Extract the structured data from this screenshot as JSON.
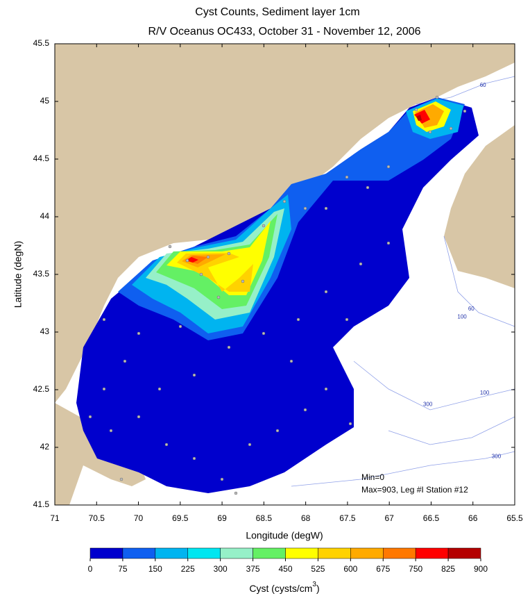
{
  "chart_data": {
    "type": "contour-map",
    "title": "Cyst Counts, Sediment layer 1cm",
    "subtitle": "R/V Oceanus OC433, October 31 - November 12, 2006",
    "x_label": "Longitude (degW)",
    "y_label": "Latitude (degN)",
    "xlim": [
      71,
      65.5
    ],
    "xticks": [
      71,
      70.5,
      70,
      69.5,
      69,
      68.5,
      68,
      67.5,
      67,
      66.5,
      66,
      65.5
    ],
    "ylim": [
      41.5,
      45.5
    ],
    "yticks": [
      41.5,
      42,
      42.5,
      43,
      43.5,
      44,
      44.5,
      45,
      45.5
    ],
    "annotations": [
      "Min=0",
      "Max=903, Leg #I Station #12"
    ],
    "contour_labels": [
      {
        "value": 60,
        "lon": 65.88,
        "lat": 45.14
      },
      {
        "value": 60,
        "lon": 66.02,
        "lat": 43.2
      },
      {
        "value": 100,
        "lon": 66.13,
        "lat": 43.13
      },
      {
        "value": 100,
        "lon": 65.86,
        "lat": 42.47
      },
      {
        "value": 300,
        "lon": 66.54,
        "lat": 42.37
      },
      {
        "value": 300,
        "lon": 65.72,
        "lat": 41.92
      }
    ],
    "colorbar": {
      "label": "Cyst (cysts/cm",
      "label_sup": "3",
      "label_end": ")",
      "ticks": [
        0,
        75,
        150,
        225,
        300,
        375,
        450,
        525,
        600,
        675,
        750,
        825,
        900
      ],
      "colors": [
        "#0000cd",
        "#0f5ff0",
        "#00b4f0",
        "#00e6f0",
        "#96f0c8",
        "#64f064",
        "#ffff00",
        "#ffd200",
        "#ffaa00",
        "#ff7800",
        "#ff0000",
        "#b40000"
      ]
    }
  }
}
